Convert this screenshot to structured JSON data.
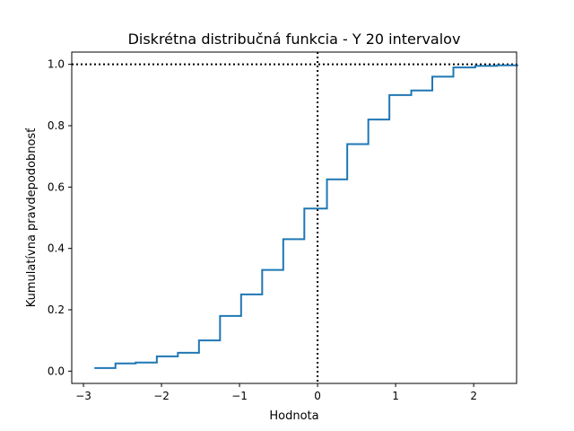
{
  "chart_data": {
    "type": "line",
    "subtype": "step",
    "title": "Diskrétna distribučná funkcia - Y 20 intervalov",
    "xlabel": "Hodnota",
    "ylabel": "Kumulatívna pravdepodobnosť",
    "xlim": [
      -3.15,
      2.55
    ],
    "ylim": [
      -0.04,
      1.04
    ],
    "xticks": [
      -3,
      -2,
      -1,
      0,
      1,
      2
    ],
    "xtick_labels": [
      "−3",
      "−2",
      "−1",
      "0",
      "1",
      "2"
    ],
    "yticks": [
      0.0,
      0.2,
      0.4,
      0.6,
      0.8,
      1.0
    ],
    "ytick_labels": [
      "0.0",
      "0.2",
      "0.4",
      "0.6",
      "0.8",
      "1.0"
    ],
    "grid": false,
    "legend": false,
    "series": [
      {
        "color": "#1f77b4",
        "x": [
          -2.86,
          -2.59,
          -2.33,
          -2.06,
          -1.79,
          -1.52,
          -1.25,
          -0.98,
          -0.71,
          -0.44,
          -0.17,
          0.12,
          0.38,
          0.65,
          0.92,
          1.2,
          1.47,
          1.74,
          2.02,
          2.3
        ],
        "y": [
          0.01,
          0.025,
          0.028,
          0.048,
          0.06,
          0.1,
          0.18,
          0.25,
          0.33,
          0.43,
          0.53,
          0.625,
          0.74,
          0.82,
          0.9,
          0.915,
          0.96,
          0.99,
          0.995,
          0.997
        ]
      }
    ],
    "reference_lines": [
      {
        "orientation": "horizontal",
        "value": 1.0,
        "style": "dotted",
        "color": "#000000"
      },
      {
        "orientation": "vertical",
        "value": 0.0,
        "style": "dotted",
        "color": "#000000"
      }
    ]
  }
}
